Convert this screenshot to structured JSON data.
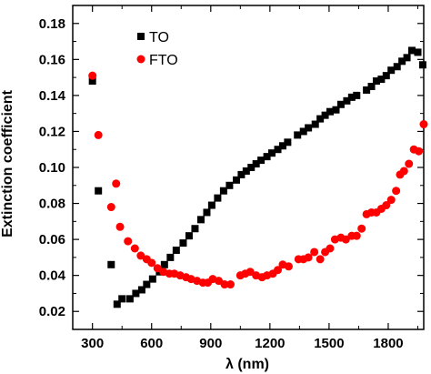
{
  "chart_data": {
    "type": "scatter",
    "title": "",
    "xlabel": "λ (nm)",
    "ylabel": "Extinction coefficient",
    "xlim": [
      200,
      1980
    ],
    "ylim": [
      0.01,
      0.19
    ],
    "xticks": [
      "300",
      "600",
      "900",
      "1200",
      "1500",
      "1800"
    ],
    "yticks": [
      "0.02",
      "0.04",
      "0.06",
      "0.08",
      "0.10",
      "0.12",
      "0.14",
      "0.16",
      "0.18"
    ],
    "legend_position": "top-left",
    "series": [
      {
        "name": "TO",
        "color": "#000000",
        "marker": "square",
        "points": [
          [
            300,
            0.148
          ],
          [
            330,
            0.087
          ],
          [
            395,
            0.046
          ],
          [
            425,
            0.024
          ],
          [
            450,
            0.027
          ],
          [
            490,
            0.027
          ],
          [
            520,
            0.03
          ],
          [
            550,
            0.032
          ],
          [
            575,
            0.035
          ],
          [
            605,
            0.038
          ],
          [
            640,
            0.042
          ],
          [
            665,
            0.046
          ],
          [
            695,
            0.05
          ],
          [
            725,
            0.054
          ],
          [
            760,
            0.058
          ],
          [
            790,
            0.062
          ],
          [
            820,
            0.066
          ],
          [
            850,
            0.071
          ],
          [
            880,
            0.075
          ],
          [
            905,
            0.079
          ],
          [
            935,
            0.083
          ],
          [
            965,
            0.087
          ],
          [
            995,
            0.09
          ],
          [
            1030,
            0.093
          ],
          [
            1055,
            0.096
          ],
          [
            1080,
            0.098
          ],
          [
            1105,
            0.1
          ],
          [
            1130,
            0.102
          ],
          [
            1155,
            0.104
          ],
          [
            1185,
            0.106
          ],
          [
            1210,
            0.108
          ],
          [
            1240,
            0.11
          ],
          [
            1265,
            0.112
          ],
          [
            1290,
            0.114
          ],
          [
            1340,
            0.118
          ],
          [
            1370,
            0.12
          ],
          [
            1395,
            0.122
          ],
          [
            1430,
            0.124
          ],
          [
            1455,
            0.127
          ],
          [
            1480,
            0.129
          ],
          [
            1505,
            0.131
          ],
          [
            1535,
            0.132
          ],
          [
            1560,
            0.135
          ],
          [
            1590,
            0.137
          ],
          [
            1615,
            0.139
          ],
          [
            1640,
            0.14
          ],
          [
            1690,
            0.143
          ],
          [
            1715,
            0.145
          ],
          [
            1740,
            0.148
          ],
          [
            1765,
            0.149
          ],
          [
            1790,
            0.151
          ],
          [
            1815,
            0.154
          ],
          [
            1845,
            0.156
          ],
          [
            1870,
            0.159
          ],
          [
            1895,
            0.161
          ],
          [
            1920,
            0.165
          ],
          [
            1950,
            0.164
          ],
          [
            1975,
            0.157
          ]
        ]
      },
      {
        "name": "FTO",
        "color": "#ff0000",
        "marker": "circle",
        "points": [
          [
            300,
            0.151
          ],
          [
            330,
            0.118
          ],
          [
            395,
            0.078
          ],
          [
            420,
            0.091
          ],
          [
            440,
            0.067
          ],
          [
            480,
            0.059
          ],
          [
            515,
            0.055
          ],
          [
            545,
            0.051
          ],
          [
            575,
            0.049
          ],
          [
            600,
            0.047
          ],
          [
            630,
            0.044
          ],
          [
            660,
            0.042
          ],
          [
            690,
            0.041
          ],
          [
            715,
            0.041
          ],
          [
            745,
            0.04
          ],
          [
            775,
            0.039
          ],
          [
            800,
            0.038
          ],
          [
            830,
            0.037
          ],
          [
            860,
            0.036
          ],
          [
            885,
            0.036
          ],
          [
            910,
            0.038
          ],
          [
            940,
            0.037
          ],
          [
            970,
            0.035
          ],
          [
            1000,
            0.035
          ],
          [
            1050,
            0.04
          ],
          [
            1075,
            0.041
          ],
          [
            1100,
            0.042
          ],
          [
            1130,
            0.04
          ],
          [
            1160,
            0.039
          ],
          [
            1185,
            0.04
          ],
          [
            1215,
            0.041
          ],
          [
            1240,
            0.043
          ],
          [
            1265,
            0.046
          ],
          [
            1295,
            0.045
          ],
          [
            1345,
            0.049
          ],
          [
            1370,
            0.049
          ],
          [
            1395,
            0.05
          ],
          [
            1425,
            0.053
          ],
          [
            1455,
            0.049
          ],
          [
            1480,
            0.053
          ],
          [
            1505,
            0.055
          ],
          [
            1530,
            0.06
          ],
          [
            1560,
            0.061
          ],
          [
            1585,
            0.06
          ],
          [
            1615,
            0.062
          ],
          [
            1640,
            0.062
          ],
          [
            1665,
            0.066
          ],
          [
            1690,
            0.074
          ],
          [
            1715,
            0.075
          ],
          [
            1740,
            0.075
          ],
          [
            1765,
            0.077
          ],
          [
            1790,
            0.079
          ],
          [
            1815,
            0.082
          ],
          [
            1840,
            0.087
          ],
          [
            1860,
            0.096
          ],
          [
            1880,
            0.098
          ],
          [
            1905,
            0.102
          ],
          [
            1930,
            0.11
          ],
          [
            1955,
            0.109
          ],
          [
            1980,
            0.124
          ]
        ]
      }
    ]
  }
}
